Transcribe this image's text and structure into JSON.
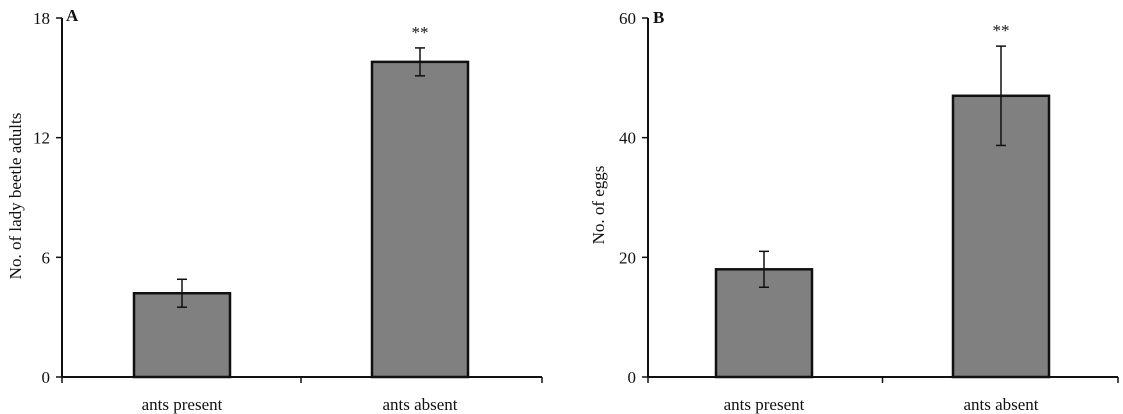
{
  "chart_data": [
    {
      "type": "bar",
      "panel_label": "A",
      "categories": [
        "ants present",
        "ants absent"
      ],
      "values": [
        4.2,
        15.8
      ],
      "error": [
        0.7,
        0.7
      ],
      "significance": [
        "",
        "**"
      ],
      "ylabel": "No. of lady beetle adults",
      "xlabel": "",
      "ylim": [
        0,
        18
      ],
      "yticks": [
        "0",
        "6",
        "12",
        "18"
      ],
      "bar_color": "#808080",
      "grid": false
    },
    {
      "type": "bar",
      "panel_label": "B",
      "categories": [
        "ants present",
        "ants absent"
      ],
      "values": [
        18,
        47
      ],
      "error": [
        3,
        8.3
      ],
      "significance": [
        "",
        "**"
      ],
      "ylabel": "No. of eggs",
      "xlabel": "",
      "ylim": [
        0,
        60
      ],
      "yticks": [
        "0",
        "20",
        "40",
        "60"
      ],
      "bar_color": "#808080",
      "grid": false
    }
  ]
}
